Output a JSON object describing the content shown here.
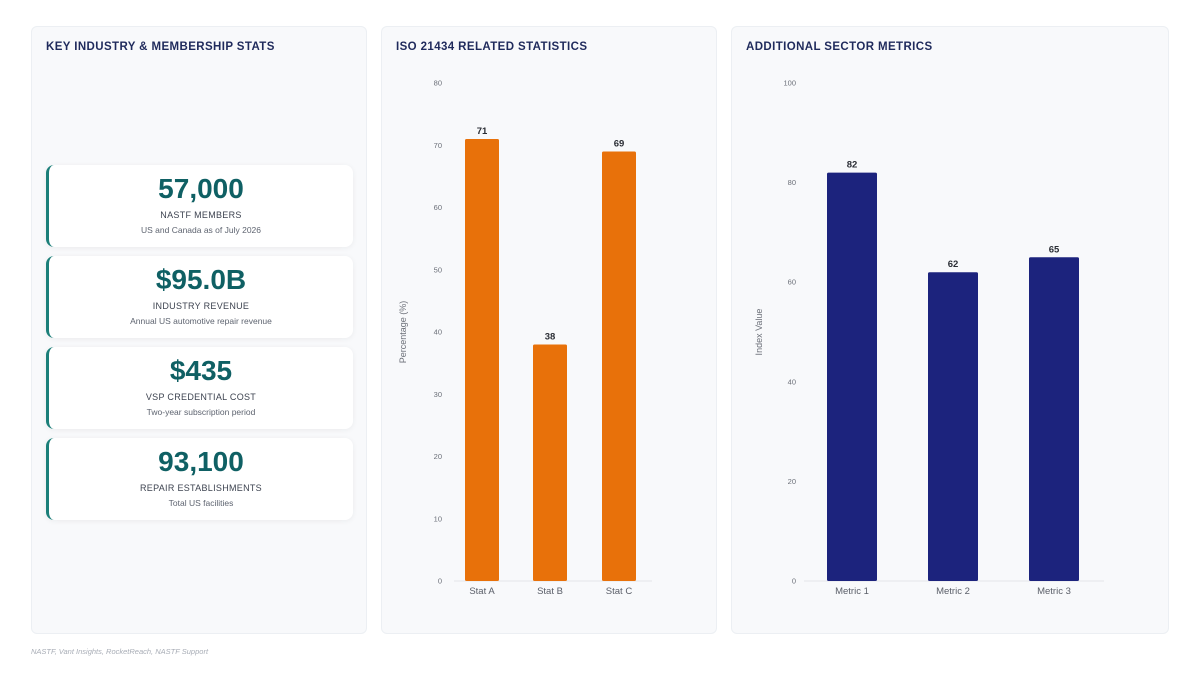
{
  "panels": {
    "stats": {
      "title": "KEY INDUSTRY & MEMBERSHIP STATS",
      "cards": [
        {
          "value": "57,000",
          "label": "NASTF MEMBERS",
          "sub": "US and Canada as of July 2026"
        },
        {
          "value": "$95.0B",
          "label": "INDUSTRY REVENUE",
          "sub": "Annual US automotive repair revenue"
        },
        {
          "value": "$435",
          "label": "VSP CREDENTIAL COST",
          "sub": "Two-year subscription period"
        },
        {
          "value": "93,100",
          "label": "REPAIR ESTABLISHMENTS",
          "sub": "Total US facilities"
        }
      ]
    },
    "iso": {
      "title": "ISO 21434 RELATED STATISTICS"
    },
    "sector": {
      "title": "ADDITIONAL SECTOR METRICS"
    }
  },
  "source_note": "NASTF, Vant Insights, RocketReach, NASTF Support",
  "colors": {
    "accent": "#1b7f79",
    "value": "#0f6064",
    "orange": "#e8710a",
    "navy": "#1c237d"
  },
  "chart_data": [
    {
      "type": "bar",
      "title": "ISO 21434 RELATED STATISTICS",
      "categories": [
        "Stat A",
        "Stat B",
        "Stat C"
      ],
      "values": [
        71,
        38,
        69
      ],
      "xlabel": "",
      "ylabel": "Percentage (%)",
      "ylim": [
        0,
        80
      ],
      "yticks": [
        0,
        10,
        20,
        30,
        40,
        50,
        60,
        70,
        80
      ],
      "color": "#e8710a",
      "grid": false
    },
    {
      "type": "bar",
      "title": "ADDITIONAL SECTOR METRICS",
      "categories": [
        "Metric 1",
        "Metric 2",
        "Metric 3"
      ],
      "values": [
        82,
        62,
        65
      ],
      "xlabel": "",
      "ylabel": "Index Value",
      "ylim": [
        0,
        100
      ],
      "yticks": [
        0,
        20,
        40,
        60,
        80,
        100
      ],
      "color": "#1c237d",
      "grid": false
    }
  ]
}
